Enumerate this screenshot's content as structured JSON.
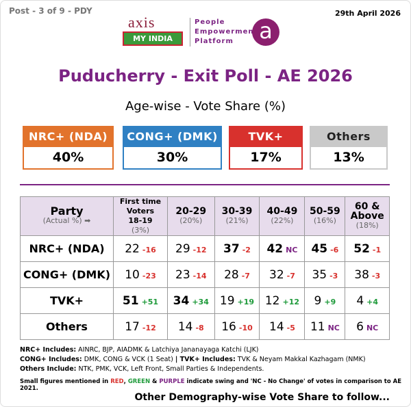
{
  "header": {
    "post": "Post - 3 of 9 - PDY",
    "date": "29th April 2026",
    "logo_top": "axis",
    "logo_bottom": "MY INDIA",
    "tagline": [
      "People",
      "Empowerment",
      "Platform"
    ],
    "logo_letter": "a"
  },
  "title": "Puducherry - Exit Poll - AE 2026",
  "subtitle": "Age-wise - Vote Share (%)",
  "summary": [
    {
      "party": "NRC+ (NDA)",
      "share": "40%",
      "color": "#e2732c"
    },
    {
      "party": "CONG+ (DMK)",
      "share": "30%",
      "color": "#2f80c3"
    },
    {
      "party": "TVK+",
      "share": "17%",
      "color": "#d8312d"
    },
    {
      "party": "Others",
      "share": "13%",
      "color": "#c9c9c9"
    }
  ],
  "table": {
    "party_head": "Party",
    "party_note": "(Actual %) ➡",
    "columns": [
      {
        "label": [
          "First time",
          "Voters",
          "18-19"
        ],
        "share": "(3%)"
      },
      {
        "label": [
          "20-29"
        ],
        "share": "(20%)"
      },
      {
        "label": [
          "30-39"
        ],
        "share": "(21%)"
      },
      {
        "label": [
          "40-49"
        ],
        "share": "(22%)"
      },
      {
        "label": [
          "50-59"
        ],
        "share": "(16%)"
      },
      {
        "label": [
          "60 &",
          "Above"
        ],
        "share": "(18%)"
      }
    ],
    "rows": [
      {
        "party": "NRC+ (NDA)",
        "cells": [
          {
            "value": "22",
            "swing": "-16"
          },
          {
            "value": "29",
            "swing": "-12"
          },
          {
            "value": "37",
            "swing": "-2",
            "bold": true
          },
          {
            "value": "42",
            "swing": "NC",
            "bold": true
          },
          {
            "value": "45",
            "swing": "-6",
            "bold": true
          },
          {
            "value": "52",
            "swing": "-1",
            "bold": true
          }
        ]
      },
      {
        "party": "CONG+ (DMK)",
        "cells": [
          {
            "value": "10",
            "swing": "-23"
          },
          {
            "value": "23",
            "swing": "-14"
          },
          {
            "value": "28",
            "swing": "-7"
          },
          {
            "value": "32",
            "swing": "-7"
          },
          {
            "value": "35",
            "swing": "-3"
          },
          {
            "value": "38",
            "swing": "-3"
          }
        ]
      },
      {
        "party": "TVK+",
        "cells": [
          {
            "value": "51",
            "swing": "+51",
            "bold": true
          },
          {
            "value": "34",
            "swing": "+34",
            "bold": true
          },
          {
            "value": "19",
            "swing": "+19"
          },
          {
            "value": "12",
            "swing": "+12"
          },
          {
            "value": "9",
            "swing": "+9"
          },
          {
            "value": "4",
            "swing": "+4"
          }
        ]
      },
      {
        "party": "Others",
        "cells": [
          {
            "value": "17",
            "swing": "-12"
          },
          {
            "value": "14",
            "swing": "-8"
          },
          {
            "value": "16",
            "swing": "-10"
          },
          {
            "value": "14",
            "swing": "-5"
          },
          {
            "value": "11",
            "swing": "NC"
          },
          {
            "value": "6",
            "swing": "NC"
          }
        ]
      }
    ]
  },
  "notes": [
    [
      {
        "label": "NRC+ Includes:",
        "text": " AINRC, BJP, AIADMK & Latchiya Jananayaga Katchi (LJK)"
      }
    ],
    [
      {
        "label": "CONG+ Includes:",
        "text": " DMK, CONG & VCK (1 Seat)  "
      },
      {
        "label": "|  TVK+ Includes:",
        "text": " TVK & Neyam Makkal Kazhagam (NMK)"
      }
    ],
    [
      {
        "label": "Others Include:",
        "text": " NTK, PMK, VCK, Left Front, Small Parties & Independents."
      }
    ]
  ],
  "legend_note": [
    {
      "text": "Small figures mentioned in "
    },
    {
      "text": "RED",
      "color": "#d8312d"
    },
    {
      "text": ", "
    },
    {
      "text": "GREEN",
      "color": "#1e9a3a"
    },
    {
      "text": " & "
    },
    {
      "text": "PURPLE",
      "color": "#7b2383"
    },
    {
      "text": " indicate swing and 'NC - No Change' of votes in comparison to AE 2021."
    }
  ],
  "footer": "Other Demography-wise Vote Share to follow..."
}
